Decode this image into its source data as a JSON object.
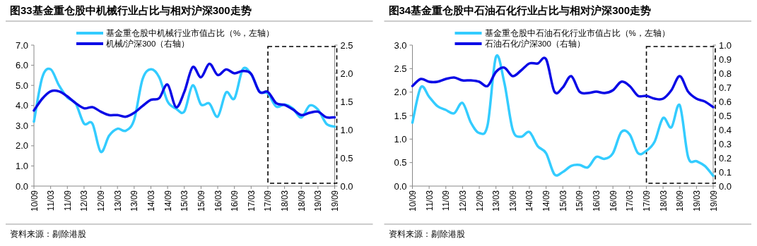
{
  "chart_data": [
    {
      "type": "line",
      "title": "图33基金重仓股中机械行业占比与相对沪深300走势",
      "categories": [
        "10/09",
        null,
        "11/03",
        null,
        "11/09",
        null,
        "12/03",
        null,
        "12/09",
        null,
        "13/03",
        null,
        "13/09",
        null,
        "14/03",
        null,
        "14/09",
        null,
        "15/03",
        null,
        "15/09",
        null,
        "16/03",
        null,
        "16/09",
        null,
        "17/03",
        null,
        "17/09",
        null,
        "18/03",
        null,
        "18/09",
        null,
        "19/03",
        null,
        "19/09"
      ],
      "series": [
        {
          "name": "基金重仓股中机械行业市值占比（%，左轴）",
          "color": "#33ccff",
          "values": [
            3.2,
            5.4,
            5.8,
            5.0,
            4.4,
            4.1,
            3.1,
            3.1,
            1.7,
            2.5,
            2.85,
            2.75,
            3.3,
            5.3,
            5.8,
            5.4,
            4.2,
            3.85,
            3.7,
            5.0,
            4.05,
            4.1,
            3.45,
            4.65,
            4.35,
            5.8,
            5.55,
            4.7,
            4.6,
            3.95,
            4.05,
            3.85,
            3.4,
            4.0,
            3.8,
            3.1,
            2.95
          ]
        },
        {
          "name": "机械/沪深300（右轴）",
          "color": "#0a0ae6",
          "axis": "y2",
          "values": [
            1.34,
            1.55,
            1.68,
            1.68,
            1.59,
            1.47,
            1.38,
            1.4,
            1.32,
            1.26,
            1.26,
            1.23,
            1.3,
            1.42,
            1.53,
            1.56,
            1.8,
            1.4,
            1.67,
            2.11,
            1.93,
            2.17,
            1.97,
            2.07,
            2.0,
            2.04,
            1.99,
            1.67,
            1.67,
            1.47,
            1.44,
            1.36,
            1.26,
            1.3,
            1.32,
            1.22,
            1.22
          ]
        }
      ],
      "ylim": [
        0,
        7
      ],
      "yticks": [
        {
          "value": 0,
          "label": "0.0"
        },
        {
          "value": 1,
          "label": "1.0"
        },
        {
          "value": 2,
          "label": "2.0"
        },
        {
          "value": 3,
          "label": "3.0"
        },
        {
          "value": 4,
          "label": "4.0"
        },
        {
          "value": 5,
          "label": "5.0"
        },
        {
          "value": 6,
          "label": "6.0"
        },
        {
          "value": 7,
          "label": "7.0"
        }
      ],
      "y2lim": [
        0,
        2.5
      ],
      "y2ticks": [
        {
          "value": 0,
          "label": "0.0"
        },
        {
          "value": 0.5,
          "label": "0.5"
        },
        {
          "value": 1,
          "label": "1.0"
        },
        {
          "value": 1.5,
          "label": "1.5"
        },
        {
          "value": 2,
          "label": "2.0"
        },
        {
          "value": 2.5,
          "label": "2.5"
        }
      ],
      "legend": "top",
      "grid": false,
      "annotations": [
        "资料来源：剔除港股"
      ]
    },
    {
      "type": "line",
      "title": "图34基金重仓股中石油石化行业占比与相对沪深300走势",
      "categories": [
        "10/09",
        null,
        "11/03",
        null,
        "11/09",
        null,
        "12/03",
        null,
        "12/09",
        null,
        "13/03",
        null,
        "13/09",
        null,
        "14/03",
        null,
        "14/09",
        null,
        "15/03",
        null,
        "15/09",
        null,
        "16/03",
        null,
        "16/09",
        null,
        "17/03",
        null,
        "17/09",
        null,
        "18/03",
        null,
        "18/09",
        null,
        "19/03",
        null,
        "19/09"
      ],
      "series": [
        {
          "name": "基金重仓股中石油石化行业市值占比（%，左轴）",
          "color": "#33ccff",
          "values": [
            1.35,
            2.1,
            1.9,
            1.7,
            1.62,
            1.55,
            1.77,
            1.35,
            1.13,
            1.3,
            2.75,
            2.2,
            1.2,
            1.05,
            1.15,
            0.85,
            0.7,
            0.25,
            0.3,
            0.43,
            0.45,
            0.4,
            0.62,
            0.58,
            0.7,
            1.15,
            1.1,
            0.7,
            0.75,
            0.95,
            1.45,
            1.25,
            1.72,
            0.62,
            0.53,
            0.43,
            0.22
          ]
        },
        {
          "name": "石油石化/沪深300（右轴）",
          "color": "#0a0ae6",
          "axis": "y2",
          "values": [
            0.71,
            0.76,
            0.74,
            0.74,
            0.76,
            0.77,
            0.75,
            0.75,
            0.74,
            0.71,
            0.81,
            0.84,
            0.78,
            0.82,
            0.87,
            0.87,
            0.9,
            0.67,
            0.7,
            0.78,
            0.67,
            0.66,
            0.67,
            0.66,
            0.68,
            0.74,
            0.71,
            0.64,
            0.64,
            0.62,
            0.62,
            0.68,
            0.78,
            0.67,
            0.62,
            0.6,
            0.56
          ]
        }
      ],
      "ylim": [
        0,
        3
      ],
      "yticks": [
        {
          "value": 0,
          "label": "0.0"
        },
        {
          "value": 0.5,
          "label": "0.5"
        },
        {
          "value": 1,
          "label": "1.0"
        },
        {
          "value": 1.5,
          "label": "1.5"
        },
        {
          "value": 2,
          "label": "2.0"
        },
        {
          "value": 2.5,
          "label": "2.5"
        },
        {
          "value": 3,
          "label": "3.0"
        }
      ],
      "y2lim": [
        0,
        1
      ],
      "y2ticks": [
        {
          "value": 0,
          "label": "0.0"
        },
        {
          "value": 0.1,
          "label": "0.1"
        },
        {
          "value": 0.2,
          "label": "0.2"
        },
        {
          "value": 0.3,
          "label": "0.3"
        },
        {
          "value": 0.4,
          "label": "0.4"
        },
        {
          "value": 0.5,
          "label": "0.5"
        },
        {
          "value": 0.6,
          "label": "0.6"
        },
        {
          "value": 0.7,
          "label": "0.7"
        },
        {
          "value": 0.8,
          "label": "0.8"
        },
        {
          "value": 0.9,
          "label": "0.9"
        },
        {
          "value": 1,
          "label": "1.0"
        }
      ],
      "legend": "top",
      "grid": false,
      "annotations": [
        "资料来源：剔除港股"
      ]
    }
  ]
}
